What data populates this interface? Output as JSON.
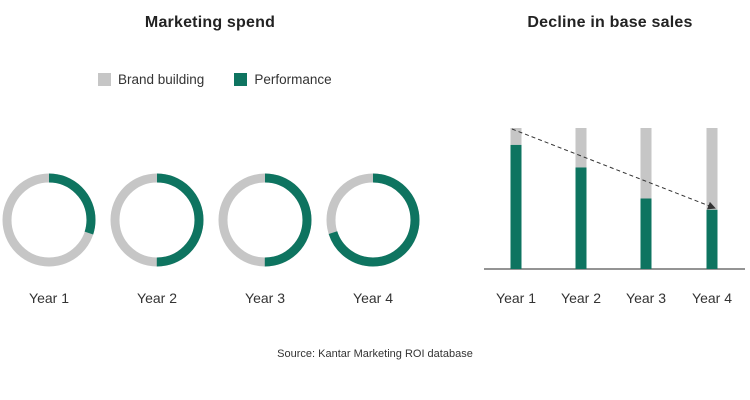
{
  "colors": {
    "brand": "#c6c6c6",
    "performance": "#0e7460",
    "axis": "#555555",
    "arrow": "#333333"
  },
  "left_panel": {
    "title": "Marketing spend"
  },
  "right_panel": {
    "title": "Decline in base sales"
  },
  "legend": [
    {
      "label": "Brand building",
      "color": "#c6c6c6"
    },
    {
      "label": "Performance",
      "color": "#0e7460"
    }
  ],
  "source": "Source: Kantar Marketing ROI database",
  "chart_data": [
    {
      "type": "pie",
      "variant": "donut",
      "title": "Marketing spend",
      "categories": [
        "Year 1",
        "Year 2",
        "Year 3",
        "Year 4"
      ],
      "series": [
        {
          "name": "Brand building",
          "values": [
            0.7,
            0.5,
            0.5,
            0.3
          ]
        },
        {
          "name": "Performance",
          "values": [
            0.3,
            0.5,
            0.5,
            0.7
          ]
        }
      ],
      "legend": "top"
    },
    {
      "type": "bar",
      "stacked": true,
      "title": "Decline in base sales",
      "categories": [
        "Year 1",
        "Year 2",
        "Year 3",
        "Year 4"
      ],
      "series": [
        {
          "name": "Performance",
          "values": [
            88,
            72,
            50,
            42
          ]
        },
        {
          "name": "Brand building",
          "values": [
            12,
            28,
            50,
            58
          ]
        }
      ],
      "ylim": [
        0,
        100
      ],
      "grid": false,
      "annotation": "dashed arrow from Year 1 bar top to Year 4 performance top"
    }
  ]
}
